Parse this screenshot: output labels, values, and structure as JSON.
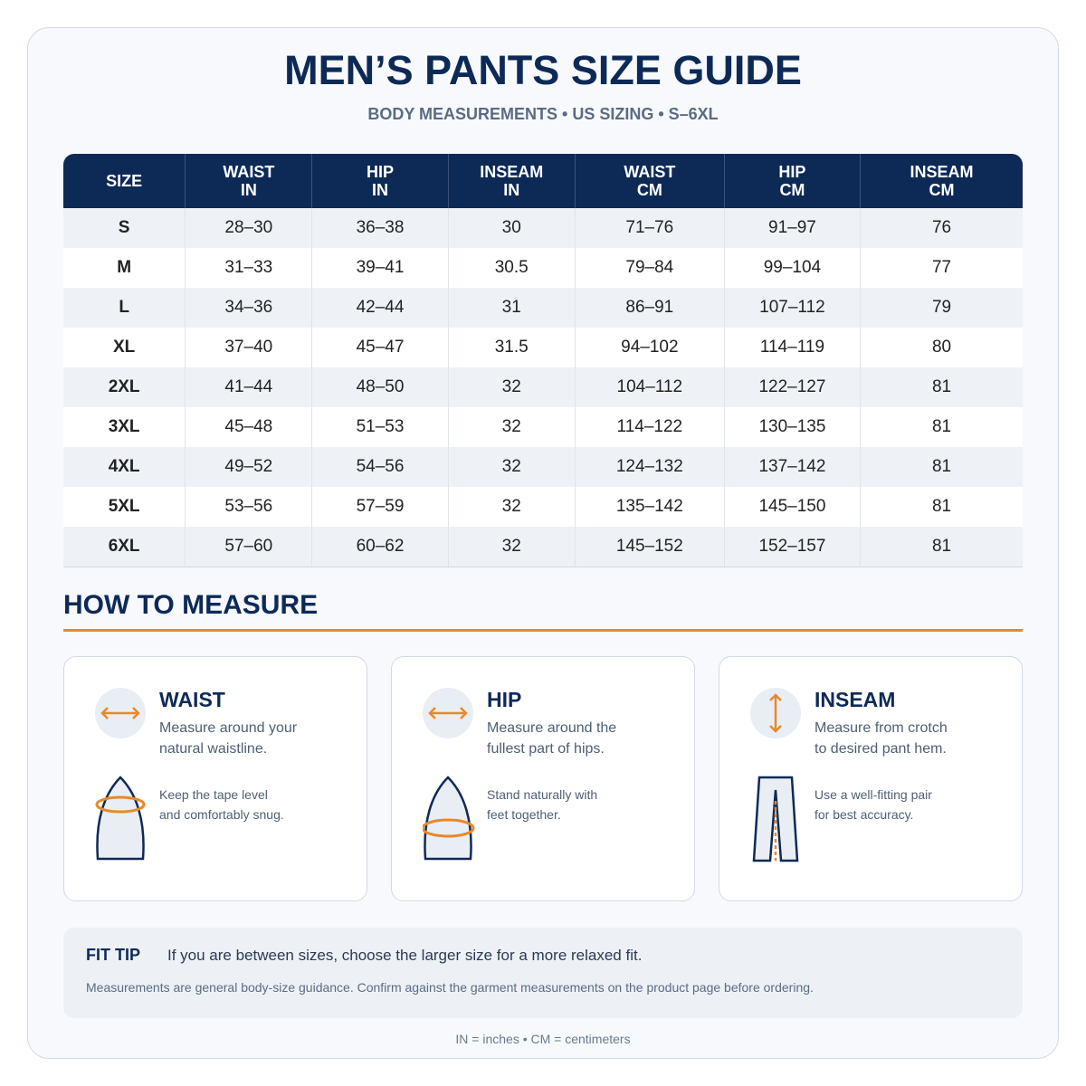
{
  "header": {
    "title": "MEN’S PANTS SIZE GUIDE",
    "subtitle": "BODY MEASUREMENTS • US SIZING • S–6XL"
  },
  "table": {
    "columns": [
      [
        "SIZE"
      ],
      [
        "WAIST",
        "IN"
      ],
      [
        "HIP",
        "IN"
      ],
      [
        "INSEAM",
        "IN"
      ],
      [
        "WAIST",
        "CM"
      ],
      [
        "HIP",
        "CM"
      ],
      [
        "INSEAM",
        "CM"
      ]
    ],
    "rows": [
      [
        "S",
        "28–30",
        "36–38",
        "30",
        "71–76",
        "91–97",
        "76"
      ],
      [
        "M",
        "31–33",
        "39–41",
        "30.5",
        "79–84",
        "99–104",
        "77"
      ],
      [
        "L",
        "34–36",
        "42–44",
        "31",
        "86–91",
        "107–112",
        "79"
      ],
      [
        "XL",
        "37–40",
        "45–47",
        "31.5",
        "94–102",
        "114–119",
        "80"
      ],
      [
        "2XL",
        "41–44",
        "48–50",
        "32",
        "104–112",
        "122–127",
        "81"
      ],
      [
        "3XL",
        "45–48",
        "51–53",
        "32",
        "114–122",
        "130–135",
        "81"
      ],
      [
        "4XL",
        "49–52",
        "54–56",
        "32",
        "124–132",
        "137–142",
        "81"
      ],
      [
        "5XL",
        "53–56",
        "57–59",
        "32",
        "135–142",
        "145–150",
        "81"
      ],
      [
        "6XL",
        "57–60",
        "60–62",
        "32",
        "145–152",
        "152–157",
        "81"
      ]
    ]
  },
  "how_to_measure": {
    "heading": "HOW TO MEASURE",
    "cards": [
      {
        "title": "WAIST",
        "description": [
          "Measure around your",
          "natural waistline."
        ],
        "tip": [
          "Keep the tape level",
          "and comfortably snug."
        ]
      },
      {
        "title": "HIP",
        "description": [
          "Measure around the",
          "fullest part of hips."
        ],
        "tip": [
          "Stand naturally with",
          "feet together."
        ]
      },
      {
        "title": "INSEAM",
        "description": [
          "Measure from crotch",
          "to desired pant hem."
        ],
        "tip": [
          "Use a well-fitting pair",
          "for best accuracy."
        ]
      }
    ]
  },
  "fit_tip": {
    "label": "FIT TIP",
    "text": "If you are between sizes, choose the larger size for a more relaxed fit.",
    "note": "Measurements are general body-size guidance. Confirm against the garment measurements on the product page before ordering."
  },
  "footer": "IN = inches • CM = centimeters"
}
